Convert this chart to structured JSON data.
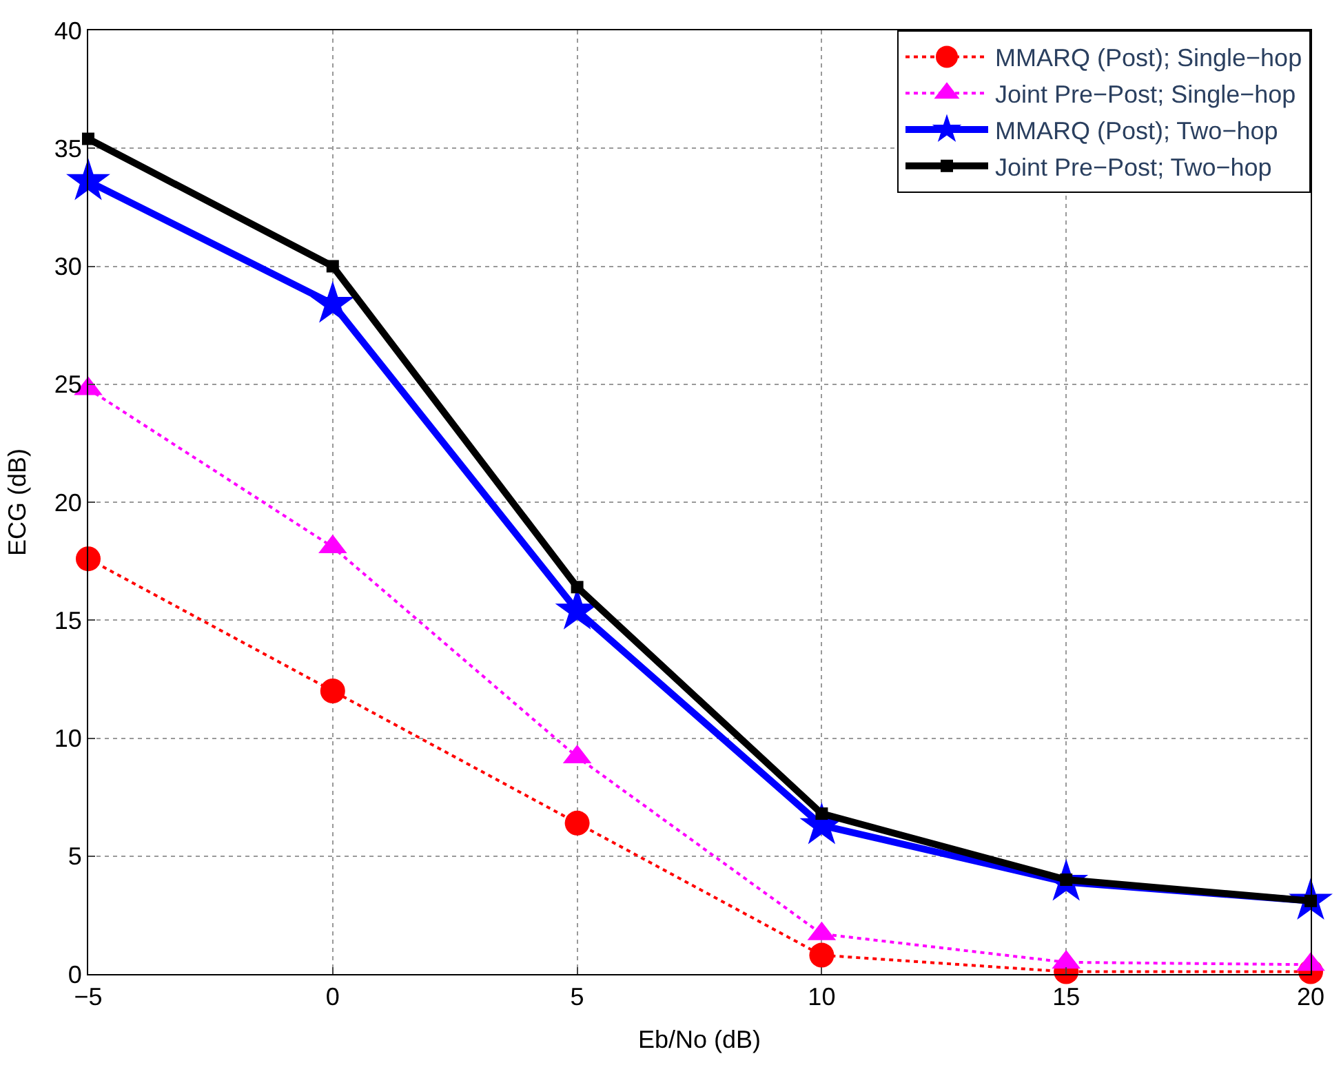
{
  "chart_data": {
    "type": "line",
    "xlabel": "Eb/No (dB)",
    "ylabel": "ECG (dB)",
    "x": [
      -5,
      0,
      5,
      10,
      15,
      20
    ],
    "xlim": [
      -5,
      20
    ],
    "xticks": [
      -5,
      0,
      5,
      10,
      15,
      20
    ],
    "ylim": [
      0,
      40
    ],
    "yticks": [
      0,
      5,
      10,
      15,
      20,
      25,
      30,
      35,
      40
    ],
    "grid": true,
    "legend": "top right",
    "series": [
      {
        "name": "MMARQ (Post); Single−hop",
        "color": "#ff0000",
        "marker": "circle",
        "line_style": "dotted",
        "values": [
          17.6,
          12.0,
          6.4,
          0.8,
          0.1,
          0.1
        ]
      },
      {
        "name": "Joint Pre−Post; Single−hop",
        "color": "#ff00ff",
        "marker": "triangle",
        "line_style": "dotted",
        "values": [
          24.8,
          18.1,
          9.2,
          1.7,
          0.5,
          0.4
        ]
      },
      {
        "name": "MMARQ (Post); Two−hop",
        "color": "#0000ff",
        "marker": "star",
        "line_style": "solid",
        "values": [
          33.6,
          28.4,
          15.4,
          6.3,
          3.9,
          3.1
        ]
      },
      {
        "name": "Joint Pre−Post; Two−hop",
        "color": "#000000",
        "marker": "square",
        "line_style": "solid",
        "values": [
          35.4,
          30.0,
          16.4,
          6.8,
          4.0,
          3.1
        ]
      }
    ]
  }
}
